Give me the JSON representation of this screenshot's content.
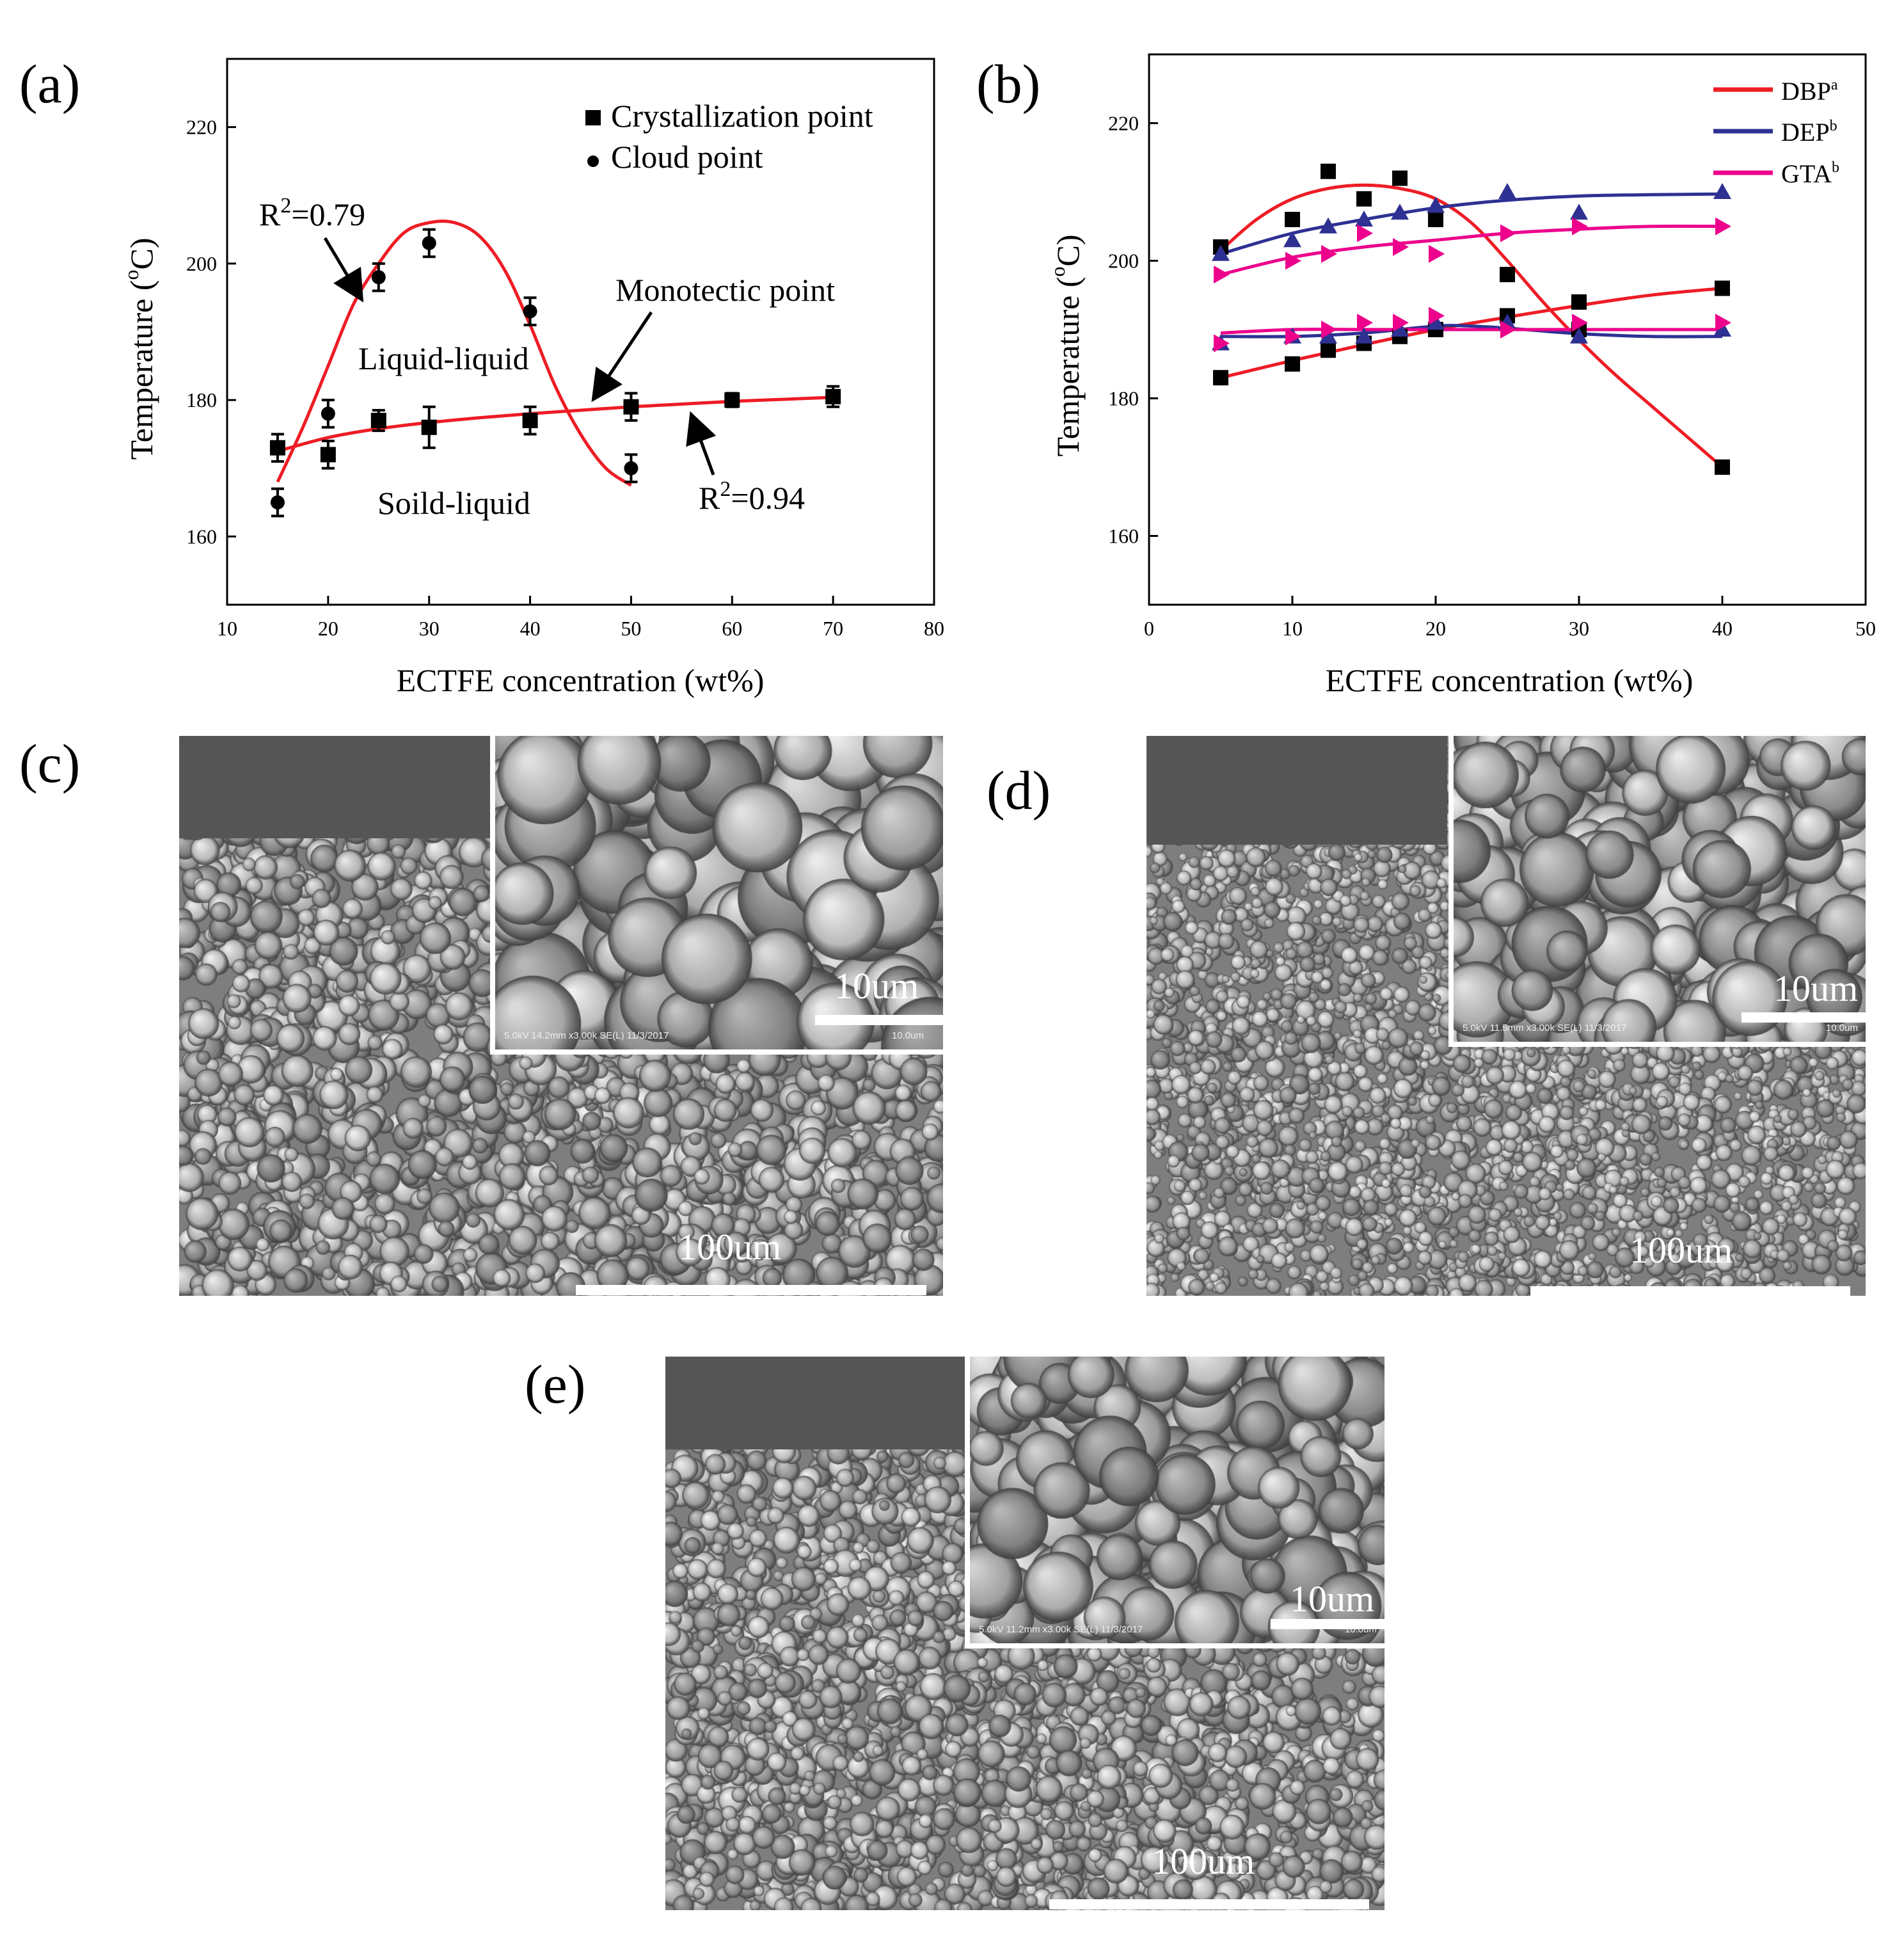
{
  "panel_labels": {
    "a": "(a)",
    "b": "(b)",
    "c": "(c)",
    "d": "(d)",
    "e": "(e)"
  },
  "chart_data": [
    {
      "panel": "a",
      "type": "scatter",
      "xlabel": "ECTFE concentration (wt%)",
      "ylabel_main": "Temperature (",
      "ylabel_unit": "C)",
      "ylabel_sup": "o",
      "xlim": [
        10,
        80
      ],
      "ylim": [
        150,
        230
      ],
      "xticks": [
        10,
        20,
        30,
        40,
        50,
        60,
        70,
        80
      ],
      "yticks": [
        160,
        180,
        200,
        220
      ],
      "legend": [
        "Crystallization point",
        "Cloud point"
      ],
      "series": [
        {
          "name": "Crystallization point",
          "marker": "square",
          "x": [
            15,
            20,
            25,
            30,
            40,
            50,
            60,
            70
          ],
          "y": [
            173,
            172,
            177,
            176,
            177,
            179,
            180,
            180.5
          ],
          "err": [
            2,
            2,
            1.5,
            3,
            2,
            2,
            1,
            1.5
          ]
        },
        {
          "name": "Cloud point",
          "marker": "circle",
          "x": [
            15,
            20,
            25,
            30,
            40,
            50
          ],
          "y": [
            165,
            178,
            198,
            203,
            193,
            170
          ],
          "err": [
            2,
            2,
            2,
            2,
            2,
            2
          ]
        }
      ],
      "fit_curves": [
        {
          "name": "cloud-fit",
          "x": [
            15,
            17.5,
            20,
            22.5,
            25,
            27.5,
            30,
            32.5,
            35,
            37.5,
            40,
            42.5,
            45,
            47.5,
            50
          ],
          "y": [
            168,
            176,
            185,
            194,
            200,
            204.5,
            206,
            206,
            204,
            199,
            191,
            182,
            175,
            170,
            167.5
          ]
        },
        {
          "name": "crystal-fit",
          "x": [
            15,
            20,
            25,
            30,
            35,
            40,
            45,
            50,
            55,
            60,
            65,
            70
          ],
          "y": [
            172.5,
            174.5,
            175.8,
            176.7,
            177.4,
            178,
            178.5,
            179,
            179.4,
            179.8,
            180.1,
            180.4
          ]
        }
      ],
      "annotations": {
        "r2_a": {
          "base": "R",
          "sup": "2",
          "tail": "=0.79"
        },
        "r2_b": {
          "base": "R",
          "sup": "2",
          "tail": "=0.94"
        },
        "monotectic": "Monotectic point",
        "liquid": "Liquid-liquid",
        "solid": "Soild-liquid"
      }
    },
    {
      "panel": "b",
      "type": "scatter",
      "xlabel": "ECTFE concentration (wt%)",
      "ylabel_main": "Temperature (",
      "ylabel_unit": "C)",
      "ylabel_sup": "o",
      "xlim": [
        0,
        50
      ],
      "ylim": [
        150,
        230
      ],
      "xticks": [
        0,
        10,
        20,
        30,
        40,
        50
      ],
      "yticks": [
        160,
        180,
        200,
        220
      ],
      "legend": [
        {
          "name": "DBP",
          "sup": "a",
          "color": "#ee1c25"
        },
        {
          "name": "DEP",
          "sup": "b",
          "color": "#2e3192"
        },
        {
          "name": "GTA",
          "sup": "b",
          "color": "#ec008c"
        }
      ],
      "series": [
        {
          "name": "DBP cloud",
          "marker": "square",
          "color": "#000000",
          "x": [
            5,
            10,
            12.5,
            15,
            17.5,
            20,
            25,
            30,
            40
          ],
          "y": [
            202,
            206,
            213,
            209,
            212,
            206,
            198,
            190,
            170
          ]
        },
        {
          "name": "DBP crystallization",
          "marker": "square",
          "color": "#000000",
          "x": [
            5,
            10,
            12.5,
            15,
            17.5,
            20,
            25,
            30,
            40
          ],
          "y": [
            183,
            185,
            187,
            188,
            189,
            190,
            192,
            194,
            196
          ]
        },
        {
          "name": "DEP cloud",
          "marker": "triangle",
          "color": "#2e3192",
          "x": [
            5,
            10,
            12.5,
            15,
            17.5,
            20,
            25,
            30,
            40
          ],
          "y": [
            201,
            203,
            205,
            206,
            207,
            208,
            210,
            207,
            210
          ]
        },
        {
          "name": "DEP crystallization",
          "marker": "triangle",
          "color": "#2e3192",
          "x": [
            5,
            10,
            12.5,
            15,
            17.5,
            20,
            25,
            30,
            40
          ],
          "y": [
            188,
            189,
            189,
            189,
            190,
            191,
            191,
            189,
            190
          ]
        },
        {
          "name": "GTA cloud",
          "marker": "tri-right",
          "color": "#ec008c",
          "x": [
            5,
            10,
            12.5,
            15,
            17.5,
            20,
            25,
            30,
            40
          ],
          "y": [
            198,
            200,
            201,
            204,
            202,
            201,
            204,
            205,
            205
          ]
        },
        {
          "name": "GTA crystallization",
          "marker": "tri-right",
          "color": "#ec008c",
          "x": [
            5,
            10,
            12.5,
            15,
            17.5,
            20,
            25,
            30,
            40
          ],
          "y": [
            188,
            189,
            190,
            191,
            191,
            192,
            190,
            191,
            191
          ]
        }
      ],
      "fit_curves": [
        {
          "name": "DBP cloud fit",
          "color": "#ee1c25",
          "x": [
            5,
            7.5,
            10,
            12.5,
            15,
            17.5,
            20,
            22.5,
            25,
            27.5,
            30,
            32.5,
            35,
            37.5,
            40
          ],
          "y": [
            201.5,
            206,
            209,
            210.5,
            211,
            210.5,
            209,
            205.5,
            200,
            194,
            188.5,
            183.5,
            179,
            174.5,
            170
          ]
        },
        {
          "name": "DBP crystal fit",
          "color": "#ee1c25",
          "x": [
            5,
            10,
            15,
            20,
            25,
            30,
            35,
            40
          ],
          "y": [
            183,
            185.5,
            187.8,
            190,
            191.8,
            193.5,
            195,
            196
          ]
        },
        {
          "name": "DEP cloud fit",
          "color": "#2e3192",
          "x": [
            5,
            10,
            15,
            20,
            25,
            30,
            35,
            40
          ],
          "y": [
            201,
            204,
            206,
            207.7,
            208.8,
            209.4,
            209.6,
            209.7
          ]
        },
        {
          "name": "DEP crystal fit",
          "color": "#2e3192",
          "x": [
            5,
            10,
            15,
            20,
            22.5,
            25,
            30,
            35,
            40
          ],
          "y": [
            189,
            189,
            189.5,
            190.5,
            190.5,
            190.2,
            189.4,
            189,
            189
          ]
        },
        {
          "name": "GTA cloud fit",
          "color": "#ec008c",
          "x": [
            5,
            10,
            15,
            20,
            25,
            30,
            35,
            40
          ],
          "y": [
            198,
            200.5,
            202,
            203,
            204,
            204.6,
            205,
            205
          ]
        },
        {
          "name": "GTA crystal fit",
          "color": "#ec008c",
          "x": [
            5,
            10,
            15,
            20,
            25,
            30,
            35,
            40
          ],
          "y": [
            189.5,
            190,
            190,
            190,
            190,
            190,
            190,
            190
          ]
        }
      ]
    }
  ],
  "sem": {
    "c": {
      "main_scale": "100um",
      "inset_scale": "10um",
      "info": "5.0kV 14.2mm x3.00k SE(L) 11/3/2017",
      "info_right": "10.0um"
    },
    "d": {
      "main_scale": "100um",
      "inset_scale": "10um",
      "info": "5.0kV 11.5mm x3.00k SE(L) 11/3/2017",
      "info_right": "10.0um"
    },
    "e": {
      "main_scale": "100um",
      "inset_scale": "10um",
      "info": "5.0kV 11.2mm x3.00k SE(L) 11/3/2017",
      "info_right": "10.0um"
    }
  }
}
